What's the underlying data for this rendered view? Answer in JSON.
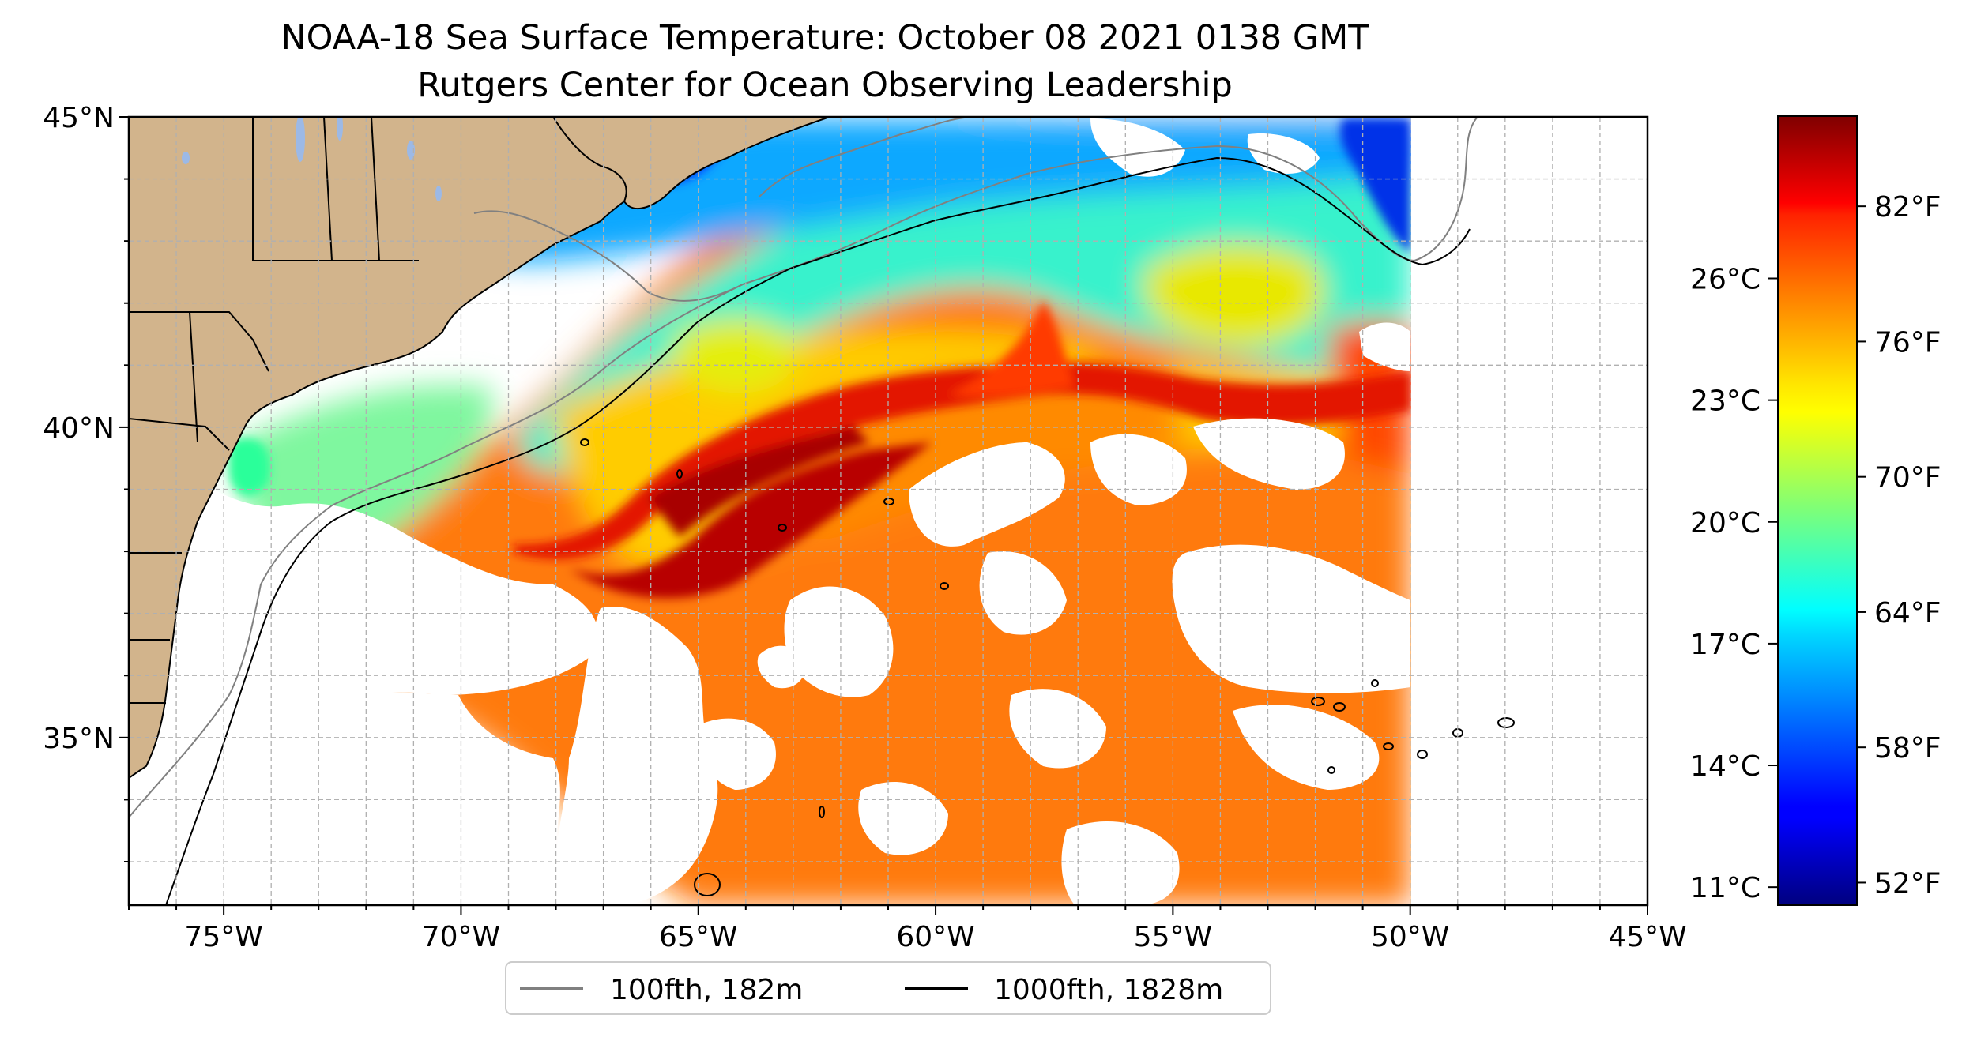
{
  "title": "NOAA-18 Sea Surface Temperature: October 08 2021 0138 GMT",
  "subtitle": "Rutgers Center for Ocean Observing Leadership",
  "map": {
    "lon_range": [
      -77,
      -45
    ],
    "lat_range": [
      32.3,
      45
    ],
    "lon_ticks": [
      {
        "value": -75,
        "label": "75°W"
      },
      {
        "value": -70,
        "label": "70°W"
      },
      {
        "value": -65,
        "label": "65°W"
      },
      {
        "value": -60,
        "label": "60°W"
      },
      {
        "value": -55,
        "label": "55°W"
      },
      {
        "value": -50,
        "label": "50°W"
      },
      {
        "value": -45,
        "label": "45°W"
      }
    ],
    "lat_ticks": [
      {
        "value": 45,
        "label": "45°N"
      },
      {
        "value": 40,
        "label": "40°N"
      },
      {
        "value": 35,
        "label": "35°N"
      }
    ],
    "grid": true,
    "data_east_limit_lon": -50,
    "land_color": "#d2b48c",
    "cloud_color": "#ffffff"
  },
  "legend": {
    "placement": "bottom-center",
    "items": [
      {
        "label": "100fth, 182m",
        "color": "#808080"
      },
      {
        "label": "1000fth, 1828m",
        "color": "#000000"
      }
    ]
  },
  "colorbar": {
    "colormap": "jet",
    "range_f": [
      51,
      86
    ],
    "celsius_ticks": [
      {
        "value": 26,
        "label": "26°C"
      },
      {
        "value": 23,
        "label": "23°C"
      },
      {
        "value": 20,
        "label": "20°C"
      },
      {
        "value": 17,
        "label": "17°C"
      },
      {
        "value": 14,
        "label": "14°C"
      },
      {
        "value": 11,
        "label": "11°C"
      }
    ],
    "fahrenheit_ticks": [
      {
        "value": 82,
        "label": "82°F"
      },
      {
        "value": 76,
        "label": "76°F"
      },
      {
        "value": 70,
        "label": "70°F"
      },
      {
        "value": 64,
        "label": "64°F"
      },
      {
        "value": 58,
        "label": "58°F"
      },
      {
        "value": 52,
        "label": "52°F"
      }
    ]
  }
}
